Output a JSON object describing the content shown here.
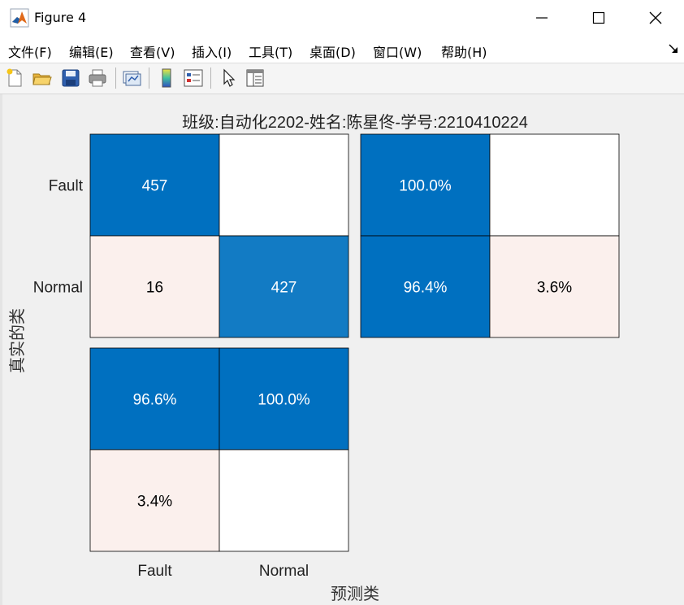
{
  "window": {
    "title": "Figure 4"
  },
  "menu": [
    "文件(F)",
    "编辑(E)",
    "查看(V)",
    "插入(I)",
    "工具(T)",
    "桌面(D)",
    "窗口(W)",
    "帮助(H)"
  ],
  "toolbar": {
    "icons": [
      "new-figure-icon",
      "open-file-icon",
      "save-icon",
      "print-icon",
      "link-plot-icon",
      "insert-colorbar-icon",
      "insert-legend-icon",
      "edit-plot-icon",
      "property-inspector-icon"
    ]
  },
  "colors": {
    "dark_blue": "#0070c0",
    "mid_blue": "#127bc4",
    "light_pink": "#fbf0ed",
    "white": "#ffffff"
  },
  "chart_data": {
    "type": "heatmap",
    "title": "班级:自动化2202-姓名:陈星佟-学号:2210410224",
    "xlabel": "预测类",
    "ylabel": "真实的类",
    "classes": [
      "Fault",
      "Normal"
    ],
    "matrix": {
      "values": [
        [
          457,
          null
        ],
        [
          16,
          427
        ]
      ],
      "labels": [
        [
          "457",
          ""
        ],
        [
          "16",
          "427"
        ]
      ]
    },
    "row_summary": {
      "values": [
        [
          100.0,
          null
        ],
        [
          96.4,
          3.6
        ]
      ],
      "labels": [
        [
          "100.0%",
          ""
        ],
        [
          "96.4%",
          "3.6%"
        ]
      ]
    },
    "column_summary": {
      "values": [
        [
          96.6,
          100.0
        ],
        [
          3.4,
          null
        ]
      ],
      "labels": [
        [
          "96.6%",
          "100.0%"
        ],
        [
          "3.4%",
          ""
        ]
      ]
    }
  }
}
